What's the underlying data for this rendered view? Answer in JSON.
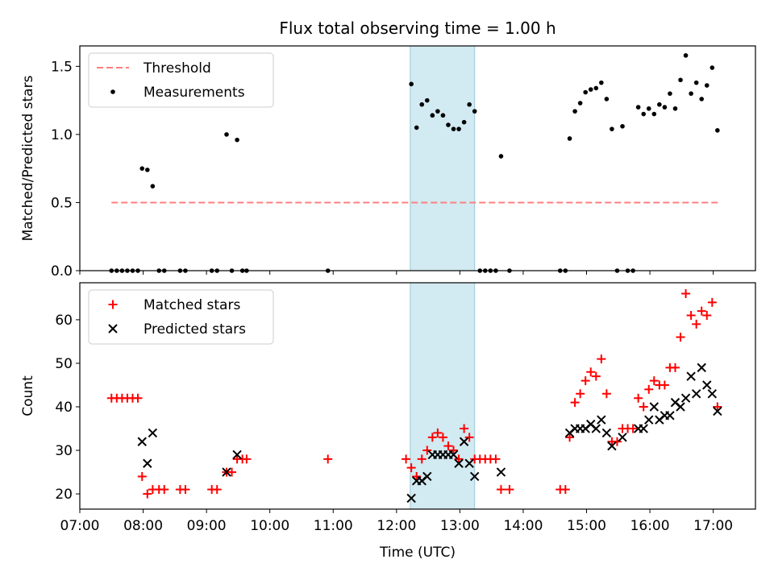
{
  "chart_data": [
    {
      "type": "scatter",
      "title": "Flux total observing time = 1.00 h",
      "ylabel": "Matched/Predicted stars",
      "xlabel": "",
      "xlim": [
        "07:00",
        "17:40"
      ],
      "ylim": [
        0,
        1.65
      ],
      "yticks": [
        "0.0",
        "0.5",
        "1.0",
        "1.5"
      ],
      "grid": false,
      "legend_position": "top-left",
      "shaded_region": {
        "start": "12:13",
        "end": "13:14"
      },
      "series": [
        {
          "name": "Threshold",
          "kind": "dashed-line",
          "color": "#ff7f7f",
          "points": [
            {
              "x": "07:30",
              "y": 0.5
            },
            {
              "x": "17:05",
              "y": 0.5
            }
          ]
        },
        {
          "name": "Measurements",
          "kind": "dots",
          "color": "#000000",
          "points": [
            {
              "x": "07:30",
              "y": 0
            },
            {
              "x": "07:35",
              "y": 0
            },
            {
              "x": "07:40",
              "y": 0
            },
            {
              "x": "07:45",
              "y": 0
            },
            {
              "x": "07:50",
              "y": 0
            },
            {
              "x": "07:55",
              "y": 0
            },
            {
              "x": "07:59",
              "y": 0.75
            },
            {
              "x": "08:04",
              "y": 0.74
            },
            {
              "x": "08:09",
              "y": 0.62
            },
            {
              "x": "08:15",
              "y": 0
            },
            {
              "x": "08:20",
              "y": 0
            },
            {
              "x": "08:35",
              "y": 0
            },
            {
              "x": "08:40",
              "y": 0
            },
            {
              "x": "09:05",
              "y": 0
            },
            {
              "x": "09:10",
              "y": 0
            },
            {
              "x": "09:19",
              "y": 1.0
            },
            {
              "x": "09:29",
              "y": 0.96
            },
            {
              "x": "09:24",
              "y": 0
            },
            {
              "x": "09:34",
              "y": 0
            },
            {
              "x": "09:38",
              "y": 0
            },
            {
              "x": "10:55",
              "y": 0
            },
            {
              "x": "12:14",
              "y": 1.37
            },
            {
              "x": "12:19",
              "y": 1.05
            },
            {
              "x": "12:24",
              "y": 1.22
            },
            {
              "x": "12:29",
              "y": 1.25
            },
            {
              "x": "12:34",
              "y": 1.14
            },
            {
              "x": "12:39",
              "y": 1.17
            },
            {
              "x": "12:44",
              "y": 1.14
            },
            {
              "x": "12:49",
              "y": 1.07
            },
            {
              "x": "12:54",
              "y": 1.04
            },
            {
              "x": "12:59",
              "y": 1.04
            },
            {
              "x": "13:04",
              "y": 1.09
            },
            {
              "x": "13:09",
              "y": 1.22
            },
            {
              "x": "13:14",
              "y": 1.17
            },
            {
              "x": "13:19",
              "y": 0
            },
            {
              "x": "13:24",
              "y": 0
            },
            {
              "x": "13:29",
              "y": 0
            },
            {
              "x": "13:34",
              "y": 0
            },
            {
              "x": "13:39",
              "y": 0.84
            },
            {
              "x": "13:47",
              "y": 0
            },
            {
              "x": "14:35",
              "y": 0
            },
            {
              "x": "14:40",
              "y": 0
            },
            {
              "x": "14:44",
              "y": 0.97
            },
            {
              "x": "14:49",
              "y": 1.17
            },
            {
              "x": "14:54",
              "y": 1.23
            },
            {
              "x": "14:59",
              "y": 1.31
            },
            {
              "x": "15:04",
              "y": 1.33
            },
            {
              "x": "15:09",
              "y": 1.34
            },
            {
              "x": "15:14",
              "y": 1.38
            },
            {
              "x": "15:19",
              "y": 1.26
            },
            {
              "x": "15:24",
              "y": 1.04
            },
            {
              "x": "15:29",
              "y": 0
            },
            {
              "x": "15:34",
              "y": 1.06
            },
            {
              "x": "15:39",
              "y": 0
            },
            {
              "x": "15:44",
              "y": 0
            },
            {
              "x": "15:49",
              "y": 1.2
            },
            {
              "x": "15:54",
              "y": 1.15
            },
            {
              "x": "15:59",
              "y": 1.19
            },
            {
              "x": "16:04",
              "y": 1.15
            },
            {
              "x": "16:09",
              "y": 1.22
            },
            {
              "x": "16:14",
              "y": 1.2
            },
            {
              "x": "16:19",
              "y": 1.3
            },
            {
              "x": "16:24",
              "y": 1.19
            },
            {
              "x": "16:29",
              "y": 1.4
            },
            {
              "x": "16:34",
              "y": 1.58
            },
            {
              "x": "16:39",
              "y": 1.3
            },
            {
              "x": "16:44",
              "y": 1.38
            },
            {
              "x": "16:49",
              "y": 1.26
            },
            {
              "x": "16:54",
              "y": 1.36
            },
            {
              "x": "16:59",
              "y": 1.49
            },
            {
              "x": "17:04",
              "y": 1.03
            }
          ]
        }
      ]
    },
    {
      "type": "scatter",
      "title": "",
      "ylabel": "Count",
      "xlabel": "Time (UTC)",
      "xlim": [
        "07:00",
        "17:40"
      ],
      "ylim": [
        16.5,
        68.5
      ],
      "yticks": [
        "20",
        "30",
        "40",
        "50",
        "60"
      ],
      "xticks": [
        "07:00",
        "08:00",
        "09:00",
        "10:00",
        "11:00",
        "12:00",
        "13:00",
        "14:00",
        "15:00",
        "16:00",
        "17:00"
      ],
      "grid": false,
      "legend_position": "top-left",
      "shaded_region": {
        "start": "12:13",
        "end": "13:14"
      },
      "series": [
        {
          "name": "Matched stars",
          "kind": "plus",
          "color": "#ff0000",
          "points": [
            {
              "x": "07:30",
              "y": 42
            },
            {
              "x": "07:35",
              "y": 42
            },
            {
              "x": "07:40",
              "y": 42
            },
            {
              "x": "07:45",
              "y": 42
            },
            {
              "x": "07:50",
              "y": 42
            },
            {
              "x": "07:55",
              "y": 42
            },
            {
              "x": "07:59",
              "y": 24
            },
            {
              "x": "08:04",
              "y": 20
            },
            {
              "x": "08:09",
              "y": 21
            },
            {
              "x": "08:15",
              "y": 21
            },
            {
              "x": "08:20",
              "y": 21
            },
            {
              "x": "08:35",
              "y": 21
            },
            {
              "x": "08:40",
              "y": 21
            },
            {
              "x": "09:05",
              "y": 21
            },
            {
              "x": "09:10",
              "y": 21
            },
            {
              "x": "09:19",
              "y": 25
            },
            {
              "x": "09:24",
              "y": 25
            },
            {
              "x": "09:29",
              "y": 28
            },
            {
              "x": "09:34",
              "y": 28
            },
            {
              "x": "09:38",
              "y": 28
            },
            {
              "x": "10:55",
              "y": 28
            },
            {
              "x": "12:09",
              "y": 28
            },
            {
              "x": "12:14",
              "y": 26
            },
            {
              "x": "12:19",
              "y": 24
            },
            {
              "x": "12:24",
              "y": 28
            },
            {
              "x": "12:29",
              "y": 30
            },
            {
              "x": "12:34",
              "y": 33
            },
            {
              "x": "12:39",
              "y": 34
            },
            {
              "x": "12:44",
              "y": 33
            },
            {
              "x": "12:49",
              "y": 31
            },
            {
              "x": "12:54",
              "y": 30
            },
            {
              "x": "12:59",
              "y": 28
            },
            {
              "x": "13:04",
              "y": 35
            },
            {
              "x": "13:09",
              "y": 33
            },
            {
              "x": "13:14",
              "y": 28
            },
            {
              "x": "13:19",
              "y": 28
            },
            {
              "x": "13:24",
              "y": 28
            },
            {
              "x": "13:29",
              "y": 28
            },
            {
              "x": "13:34",
              "y": 28
            },
            {
              "x": "13:39",
              "y": 21
            },
            {
              "x": "13:47",
              "y": 21
            },
            {
              "x": "14:35",
              "y": 21
            },
            {
              "x": "14:40",
              "y": 21
            },
            {
              "x": "14:44",
              "y": 33
            },
            {
              "x": "14:49",
              "y": 41
            },
            {
              "x": "14:54",
              "y": 43
            },
            {
              "x": "14:59",
              "y": 46
            },
            {
              "x": "15:04",
              "y": 48
            },
            {
              "x": "15:09",
              "y": 47
            },
            {
              "x": "15:14",
              "y": 51
            },
            {
              "x": "15:19",
              "y": 43
            },
            {
              "x": "15:24",
              "y": 32
            },
            {
              "x": "15:29",
              "y": 32
            },
            {
              "x": "15:34",
              "y": 35
            },
            {
              "x": "15:39",
              "y": 35
            },
            {
              "x": "15:44",
              "y": 35
            },
            {
              "x": "15:49",
              "y": 42
            },
            {
              "x": "15:54",
              "y": 40
            },
            {
              "x": "15:59",
              "y": 44
            },
            {
              "x": "16:04",
              "y": 46
            },
            {
              "x": "16:09",
              "y": 45
            },
            {
              "x": "16:14",
              "y": 45
            },
            {
              "x": "16:19",
              "y": 49
            },
            {
              "x": "16:24",
              "y": 49
            },
            {
              "x": "16:29",
              "y": 56
            },
            {
              "x": "16:34",
              "y": 66
            },
            {
              "x": "16:39",
              "y": 61
            },
            {
              "x": "16:44",
              "y": 59
            },
            {
              "x": "16:49",
              "y": 62
            },
            {
              "x": "16:54",
              "y": 61
            },
            {
              "x": "16:59",
              "y": 64
            },
            {
              "x": "17:04",
              "y": 40
            }
          ]
        },
        {
          "name": "Predicted stars",
          "kind": "cross",
          "color": "#000000",
          "points": [
            {
              "x": "07:59",
              "y": 32
            },
            {
              "x": "08:04",
              "y": 27
            },
            {
              "x": "08:09",
              "y": 34
            },
            {
              "x": "09:19",
              "y": 25
            },
            {
              "x": "09:29",
              "y": 29
            },
            {
              "x": "12:14",
              "y": 19
            },
            {
              "x": "12:19",
              "y": 23
            },
            {
              "x": "12:24",
              "y": 23
            },
            {
              "x": "12:29",
              "y": 24
            },
            {
              "x": "12:34",
              "y": 29
            },
            {
              "x": "12:39",
              "y": 29
            },
            {
              "x": "12:44",
              "y": 29
            },
            {
              "x": "12:49",
              "y": 29
            },
            {
              "x": "12:54",
              "y": 29
            },
            {
              "x": "12:59",
              "y": 27
            },
            {
              "x": "13:04",
              "y": 32
            },
            {
              "x": "13:09",
              "y": 27
            },
            {
              "x": "13:14",
              "y": 24
            },
            {
              "x": "13:39",
              "y": 25
            },
            {
              "x": "14:44",
              "y": 34
            },
            {
              "x": "14:49",
              "y": 35
            },
            {
              "x": "14:54",
              "y": 35
            },
            {
              "x": "14:59",
              "y": 35
            },
            {
              "x": "15:04",
              "y": 36
            },
            {
              "x": "15:09",
              "y": 35
            },
            {
              "x": "15:14",
              "y": 37
            },
            {
              "x": "15:19",
              "y": 34
            },
            {
              "x": "15:24",
              "y": 31
            },
            {
              "x": "15:34",
              "y": 33
            },
            {
              "x": "15:49",
              "y": 35
            },
            {
              "x": "15:54",
              "y": 35
            },
            {
              "x": "15:59",
              "y": 37
            },
            {
              "x": "16:04",
              "y": 40
            },
            {
              "x": "16:09",
              "y": 37
            },
            {
              "x": "16:14",
              "y": 38
            },
            {
              "x": "16:19",
              "y": 38
            },
            {
              "x": "16:24",
              "y": 41
            },
            {
              "x": "16:29",
              "y": 40
            },
            {
              "x": "16:34",
              "y": 42
            },
            {
              "x": "16:39",
              "y": 47
            },
            {
              "x": "16:44",
              "y": 43
            },
            {
              "x": "16:49",
              "y": 49
            },
            {
              "x": "16:54",
              "y": 45
            },
            {
              "x": "16:59",
              "y": 43
            },
            {
              "x": "17:04",
              "y": 39
            }
          ]
        }
      ]
    }
  ]
}
